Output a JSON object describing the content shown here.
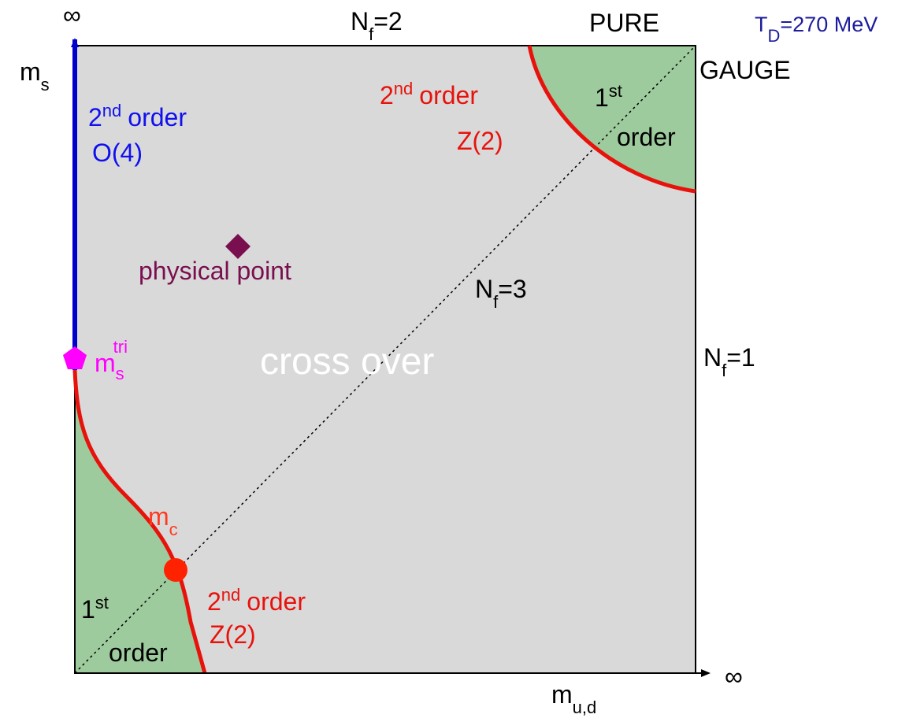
{
  "axes": {
    "x_infinity": "∞",
    "y_infinity": "∞",
    "x_label": {
      "base": "m",
      "sub": "u,d"
    },
    "y_label": {
      "base": "m",
      "sub": "s"
    }
  },
  "labels": {
    "nf2": {
      "base": "N",
      "sub": "f",
      "rest": "=2"
    },
    "pure": "PURE",
    "gauge": "GAUGE",
    "td": {
      "base": "T",
      "sub": "D",
      "rest": "=270 MeV"
    },
    "nf1": {
      "base": "N",
      "sub": "f",
      "rest": "=1"
    },
    "nf3": {
      "base": "N",
      "sub": "f",
      "rest": "=3"
    },
    "o4": {
      "num": "2",
      "sup": "nd",
      "word": "order",
      "class": "O(4)"
    },
    "z2_top": {
      "num": "2",
      "sup": "nd",
      "word": "order",
      "class": "Z(2)"
    },
    "first_top": {
      "num": "1",
      "sup": "st",
      "word": "order"
    },
    "physical_point": "physical point",
    "crossover": "cross over",
    "mtri": {
      "base": "m",
      "sub": "s",
      "sup": "tri"
    },
    "mc": {
      "base": "m",
      "sub": "c"
    },
    "z2_bottom": {
      "num": "2",
      "sup": "nd",
      "word": "order",
      "class": "Z(2)"
    },
    "first_bottom": {
      "num": "1",
      "sup": "st",
      "word": "order"
    }
  }
}
